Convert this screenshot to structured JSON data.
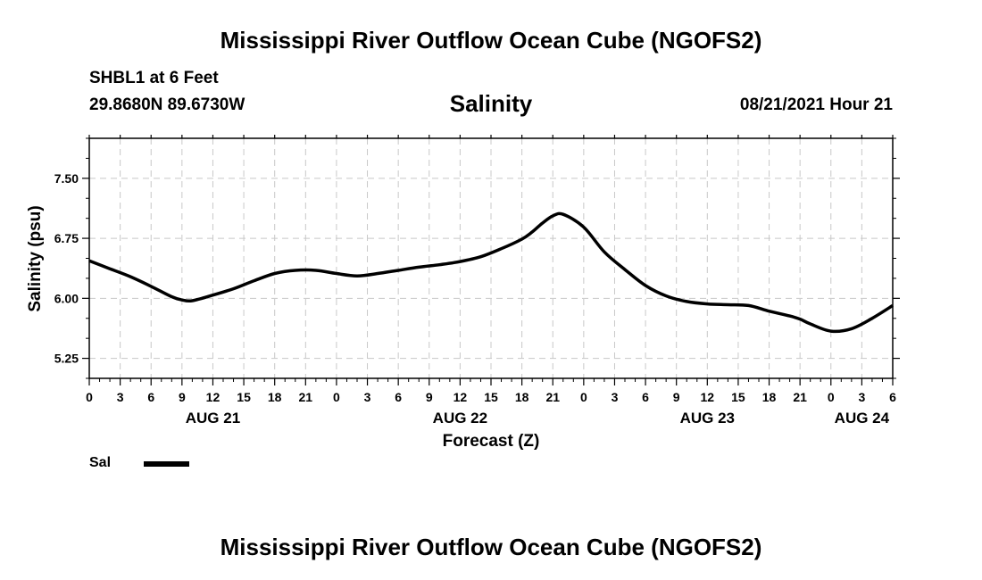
{
  "header": {
    "title": "Mississippi River Outflow Ocean Cube (NGOFS2)",
    "station": "SHBL1 at 6 Feet",
    "coords": "29.8680N  89.6730W",
    "datetime": "08/21/2021 Hour 21"
  },
  "footer": {
    "title": "Mississippi River Outflow Ocean Cube (NGOFS2)"
  },
  "legend": {
    "label": "Sal"
  },
  "chart_data": {
    "type": "line",
    "title": "Salinity",
    "xlabel": "Forecast (Z)",
    "ylabel": "Salinity (psu)",
    "xlim": [
      0,
      78
    ],
    "ylim": [
      5.0,
      8.0
    ],
    "yticks": [
      5.25,
      6.0,
      6.75,
      7.5
    ],
    "ytick_labels": [
      "5.25",
      "6.00",
      "6.75",
      "7.50"
    ],
    "xticks": [
      0,
      3,
      6,
      9,
      12,
      15,
      18,
      21,
      24,
      27,
      30,
      33,
      36,
      39,
      42,
      45,
      48,
      51,
      54,
      57,
      60,
      63,
      66,
      69,
      72,
      75,
      78
    ],
    "xtick_labels": [
      "0",
      "3",
      "6",
      "9",
      "12",
      "15",
      "18",
      "21",
      "0",
      "3",
      "6",
      "9",
      "12",
      "15",
      "18",
      "21",
      "0",
      "3",
      "6",
      "9",
      "12",
      "15",
      "18",
      "21",
      "0",
      "3",
      "6"
    ],
    "day_labels": [
      {
        "x": 12,
        "label": "AUG 21"
      },
      {
        "x": 36,
        "label": "AUG 22"
      },
      {
        "x": 60,
        "label": "AUG 23"
      },
      {
        "x": 75,
        "label": "AUG 24"
      }
    ],
    "grid": true,
    "series": [
      {
        "name": "Sal",
        "color": "#000000",
        "x": [
          0,
          2,
          4,
          6,
          8,
          9,
          10,
          12,
          14,
          16,
          18,
          20,
          22,
          24,
          26,
          28,
          30,
          32,
          34,
          36,
          38,
          40,
          42,
          43,
          44,
          45,
          46,
          48,
          50,
          52,
          54,
          56,
          58,
          60,
          62,
          64,
          66,
          68,
          69,
          70,
          72,
          74,
          76,
          78
        ],
        "y": [
          6.47,
          6.37,
          6.27,
          6.15,
          6.02,
          5.98,
          5.97,
          6.04,
          6.12,
          6.22,
          6.31,
          6.35,
          6.35,
          6.31,
          6.28,
          6.31,
          6.35,
          6.39,
          6.42,
          6.46,
          6.52,
          6.62,
          6.74,
          6.83,
          6.94,
          7.03,
          7.05,
          6.89,
          6.58,
          6.36,
          6.16,
          6.03,
          5.96,
          5.93,
          5.92,
          5.91,
          5.84,
          5.78,
          5.74,
          5.68,
          5.59,
          5.62,
          5.75,
          5.91
        ]
      }
    ]
  }
}
